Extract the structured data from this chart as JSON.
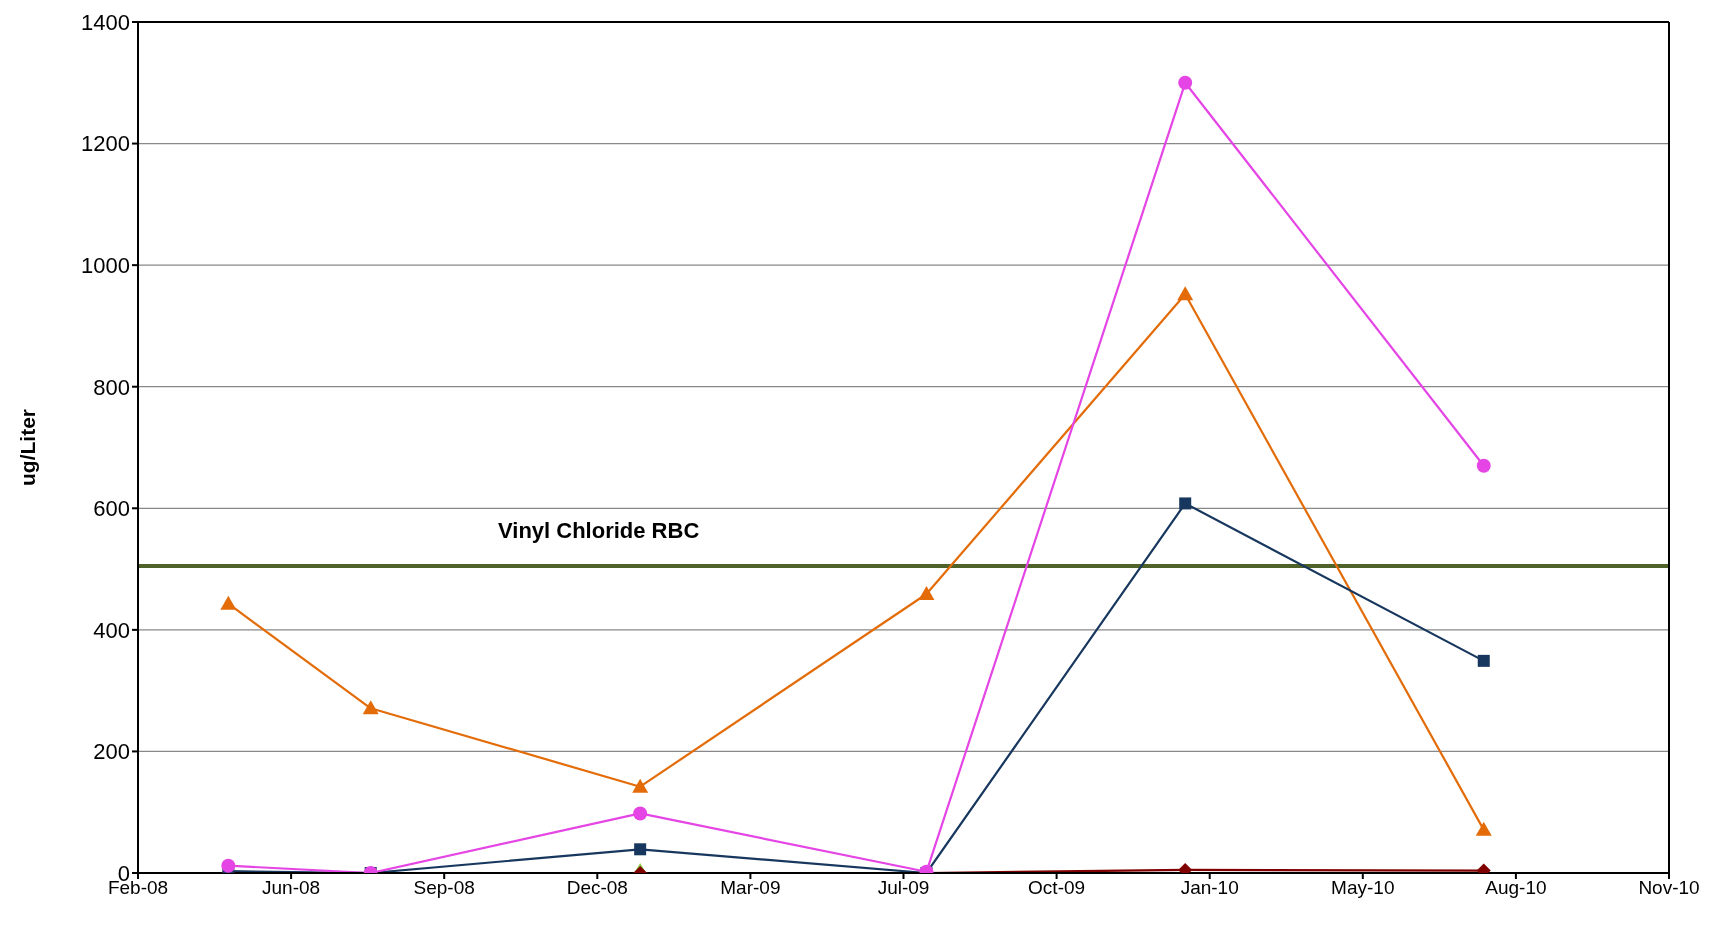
{
  "chart_data": {
    "type": "line",
    "ylabel": "ug/Liter",
    "x": [
      "2008-04-24",
      "2008-07-26",
      "2009-01-18",
      "2009-07-24",
      "2010-01-09",
      "2010-07-23"
    ],
    "series": [
      {
        "type": "scatter",
        "color": "#92d050",
        "marker": "triangle",
        "values": [
          null,
          null,
          0,
          null,
          null,
          null
        ]
      },
      {
        "color": "#800000",
        "marker": "diamond",
        "values": [
          0,
          0,
          0,
          0,
          5,
          4
        ]
      },
      {
        "color": "#e36c09",
        "marker": "triangle",
        "values": [
          443,
          271,
          142,
          459,
          952,
          71
        ]
      },
      {
        "color": "#17375e",
        "marker": "square",
        "values": [
          3,
          0,
          39,
          0,
          608,
          349
        ]
      },
      {
        "color": "#e545e5",
        "marker": "circle",
        "values": [
          12,
          0,
          98,
          2,
          1300,
          670
        ]
      }
    ],
    "xlim": [
      "2008-02-25",
      "2010-11-21"
    ],
    "xticks": [
      {
        "value": "2008-02-25",
        "label": "Feb-08"
      },
      {
        "value": "2008-06-04",
        "label": "Jun-08"
      },
      {
        "value": "2008-09-12",
        "label": "Sep-08"
      },
      {
        "value": "2008-12-21",
        "label": "Dec-08"
      },
      {
        "value": "2009-03-31",
        "label": "Mar-09"
      },
      {
        "value": "2009-07-09",
        "label": "Jul-09"
      },
      {
        "value": "2009-10-17",
        "label": "Oct-09"
      },
      {
        "value": "2010-01-25",
        "label": "Jan-10"
      },
      {
        "value": "2010-05-05",
        "label": "May-10"
      },
      {
        "value": "2010-08-13",
        "label": "Aug-10"
      },
      {
        "value": "2010-11-21",
        "label": "Nov-10"
      }
    ],
    "ylim": [
      0,
      1400
    ],
    "yticks": [
      0,
      200,
      400,
      600,
      800,
      1000,
      1200,
      1400
    ],
    "grid": "y",
    "legend": false,
    "line_style": "solid",
    "ref_lines": [
      {
        "axis": "y",
        "value": 505,
        "label": "Vinyl Chloride RBC",
        "color": "#4f6228"
      }
    ]
  }
}
